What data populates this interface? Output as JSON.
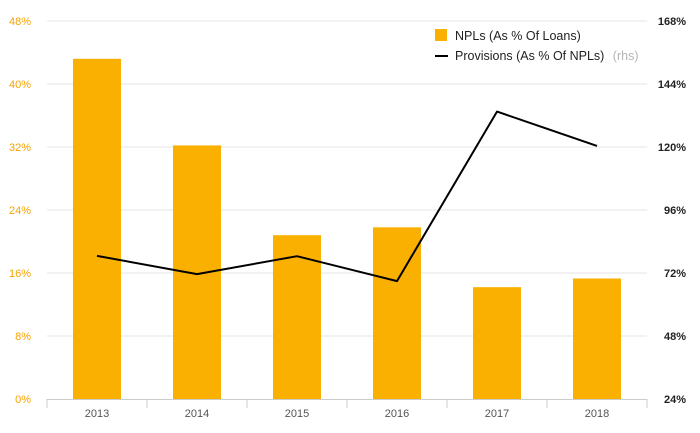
{
  "chart_data": {
    "type": "bar",
    "categories": [
      "2013",
      "2014",
      "2015",
      "2016",
      "2017",
      "2018"
    ],
    "series": [
      {
        "name": "NPLs (As % Of Loans)",
        "type": "bar",
        "axis": "left",
        "color": "#f9b000",
        "values": [
          43.2,
          32.2,
          20.8,
          21.8,
          14.2,
          15.3
        ]
      },
      {
        "name": "Provisions (As % Of NPLs)",
        "name_suffix": "(rhs)",
        "type": "line",
        "axis": "right",
        "color": "#000000",
        "values": [
          78.5,
          71.6,
          78.4,
          68.9,
          133.5,
          120.4
        ]
      }
    ],
    "y_left": {
      "range": [
        0,
        48
      ],
      "ticks": [
        "0%",
        "8%",
        "16%",
        "24%",
        "32%",
        "40%",
        "48%"
      ],
      "color": "#f5a400"
    },
    "y_right": {
      "range": [
        24,
        168
      ],
      "ticks": [
        "24%",
        "48%",
        "72%",
        "96%",
        "120%",
        "144%",
        "168%"
      ],
      "color": "#222222"
    },
    "grid": true,
    "legend_position": "top-right"
  }
}
